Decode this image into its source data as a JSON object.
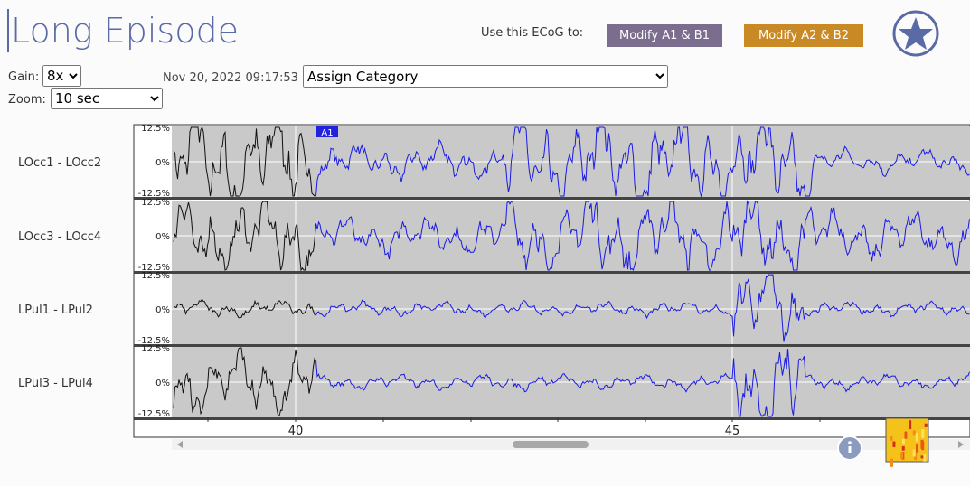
{
  "header": {
    "title": "Long Episode",
    "use_label": "Use this ECoG to:",
    "button_a1": "Modify A1 & B1",
    "button_a2": "Modify A2 & B2"
  },
  "controls": {
    "gain_label": "Gain:",
    "gain_value": "8x",
    "zoom_label": "Zoom:",
    "zoom_value": "10 sec",
    "timestamp": "Nov 20, 2022 09:17:53",
    "category": "Assign Category"
  },
  "plot": {
    "channels": [
      "LOcc1 - LOcc2",
      "LOcc3 - LOcc4",
      "LPul1 - LPul2",
      "LPul3 - LPul4"
    ],
    "y_labels": [
      "12.5%",
      "0%",
      "-12.5%"
    ],
    "x_labels": [
      "40",
      "45"
    ],
    "marker": "A1"
  }
}
